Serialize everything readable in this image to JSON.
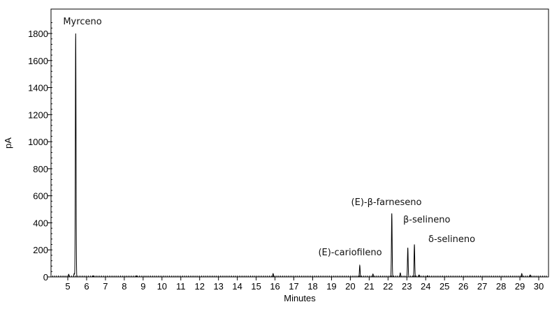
{
  "chart_data": {
    "type": "line",
    "title": "",
    "xlabel": "Minutes",
    "ylabel": "pA",
    "xlim": [
      4.1,
      30.5
    ],
    "ylim": [
      0,
      1950
    ],
    "x_ticks": [
      5,
      6,
      7,
      8,
      9,
      10,
      11,
      12,
      13,
      14,
      15,
      16,
      17,
      18,
      19,
      20,
      21,
      22,
      23,
      24,
      25,
      26,
      27,
      28,
      29,
      30
    ],
    "y_ticks": [
      0,
      200,
      400,
      600,
      800,
      1000,
      1200,
      1400,
      1600,
      1800
    ],
    "grid": false,
    "line_color": "#000000",
    "peaks": [
      {
        "rt": 5.05,
        "height": 20,
        "label": ""
      },
      {
        "rt": 5.34,
        "height": 25,
        "label": ""
      },
      {
        "rt": 5.42,
        "height": 1800,
        "label": "Myrceno"
      },
      {
        "rt": 6.35,
        "height": 8,
        "label": ""
      },
      {
        "rt": 8.65,
        "height": 8,
        "label": ""
      },
      {
        "rt": 15.9,
        "height": 25,
        "label": ""
      },
      {
        "rt": 20.5,
        "height": 85,
        "label": "(E)-cariofileno"
      },
      {
        "rt": 21.2,
        "height": 22,
        "label": ""
      },
      {
        "rt": 22.2,
        "height": 470,
        "label": "(E)-β-farneseno"
      },
      {
        "rt": 22.65,
        "height": 30,
        "label": ""
      },
      {
        "rt": 23.05,
        "height": 215,
        "label": "β-selineno"
      },
      {
        "rt": 23.4,
        "height": 240,
        "label": "δ-selineno"
      },
      {
        "rt": 23.65,
        "height": 15,
        "label": ""
      },
      {
        "rt": 24.1,
        "height": 10,
        "label": ""
      },
      {
        "rt": 29.1,
        "height": 25,
        "label": ""
      },
      {
        "rt": 29.55,
        "height": 15,
        "label": ""
      }
    ]
  }
}
